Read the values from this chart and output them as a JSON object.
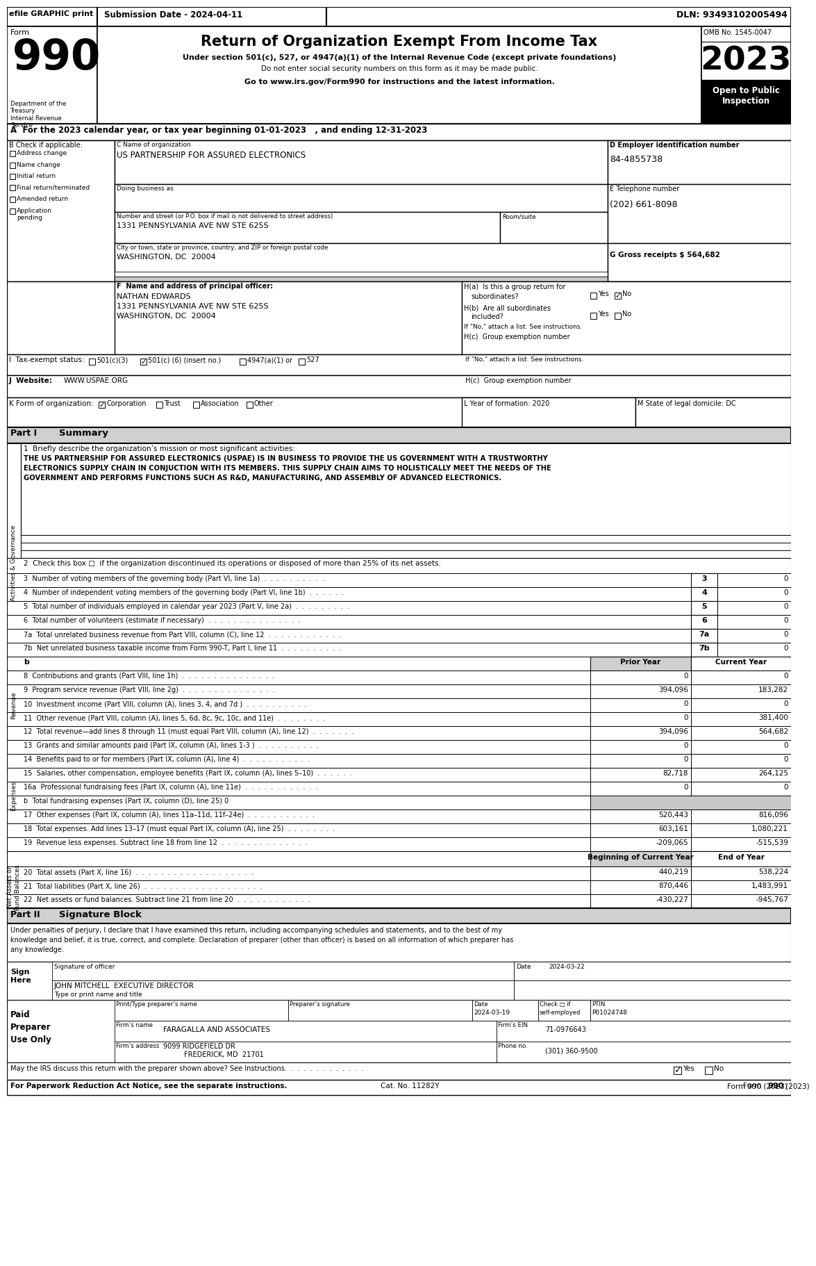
{
  "efile_header": "efile GRAPHIC print",
  "submission_date": "Submission Date - 2024-04-11",
  "dln": "DLN: 93493102005494",
  "form_number": "990",
  "title": "Return of Organization Exempt From Income Tax",
  "subtitle1": "Under section 501(c), 527, or 4947(a)(1) of the Internal Revenue Code (except private foundations)",
  "subtitle2": "Do not enter social security numbers on this form as it may be made public.",
  "subtitle3": "Go to www.irs.gov/Form990 for instructions and the latest information.",
  "omb": "OMB No. 1545-0047",
  "year": "2023",
  "open_to_public": "Open to Public\nInspection",
  "dept": "Department of the\nTreasury\nInternal Revenue\nService",
  "tax_year_line": "A  For the 2023 calendar year, or tax year beginning 01-01-2023   , and ending 12-31-2023",
  "b_label": "B Check if applicable:",
  "checkboxes_b": [
    "Address change",
    "Name change",
    "Initial return",
    "Final return/terminated",
    "Amended return",
    "Application\npending"
  ],
  "c_label": "C Name of organization",
  "org_name": "US PARTNERSHIP FOR ASSURED ELECTRONICS",
  "dba_label": "Doing business as",
  "address_label": "Number and street (or P.O. box if mail is not delivered to street address)",
  "room_label": "Room/suite",
  "address": "1331 PENNSYLVANIA AVE NW STE 625S",
  "city_label": "City or town, state or province, country, and ZIP or foreign postal code",
  "city": "WASHINGTON, DC  20004",
  "d_label": "D Employer identification number",
  "ein": "84-4855738",
  "e_label": "E Telephone number",
  "phone": "(202) 661-8098",
  "g_label": "G Gross receipts $ 564,682",
  "f_label": "F  Name and address of principal officer:",
  "principal_name": "NATHAN EDWARDS",
  "principal_addr1": "1331 PENNSYLVANIA AVE NW STE 625S",
  "principal_addr2": "WASHINGTON, DC  20004",
  "ha_label": "H(a)  Is this a group return for",
  "hb_label": "H(b)  Are all subordinates",
  "hb_label2": "included?",
  "hb_note": "If \"No,\" attach a list. See instructions.",
  "hc_label": "H(c)  Group exemption number",
  "website": "WWW.USPAE.ORG",
  "l_label": "L Year of formation: 2020",
  "m_label": "M State of legal domicile: DC",
  "part1_label": "Part I",
  "part1_title": "Summary",
  "line1_label": "1  Briefly describe the organization’s mission or most significant activities:",
  "mission_line1": "THE US PARTNERSHIP FOR ASSURED ELECTRONICS (USPAE) IS IN BUSINESS TO PROVIDE THE US GOVERNMENT WITH A TRUSTWORTHY",
  "mission_line2": "ELECTRONICS SUPPLY CHAIN IN CONJUCTION WITH ITS MEMBERS. THIS SUPPLY CHAIN AIMS TO HOLISTICALLY MEET THE NEEDS OF THE",
  "mission_line3": "GOVERNMENT AND PERFORMS FUNCTIONS SUCH AS R&D, MANUFACTURING, AND ASSEMBLY OF ADVANCED ELECTRONICS.",
  "line2": "2  Check this box □  if the organization discontinued its operations or disposed of more than 25% of its net assets.",
  "lines_3_6": [
    {
      "num": "3",
      "text": "Number of voting members of the governing body (Part VI, line 1a)  .  .  .  .  .  .  .  .  .  .",
      "val": "0"
    },
    {
      "num": "4",
      "text": "Number of independent voting members of the governing body (Part VI, line 1b)  .  .  .  .  .  .",
      "val": "0"
    },
    {
      "num": "5",
      "text": "Total number of individuals employed in calendar year 2023 (Part V, line 2a)  .  .  .  .  .  .  .  .  .",
      "val": "0"
    },
    {
      "num": "6",
      "text": "Total number of volunteers (estimate if necessary)  .  .  .  .  .  .  .  .  .  .  .  .  .  .  .",
      "val": "0"
    }
  ],
  "lines_7ab": [
    {
      "num": "7a",
      "text": "Total unrelated business revenue from Part VIII, column (C), line 12  .  .  .  .  .  .  .  .  .  .  .  .",
      "val": "0"
    },
    {
      "num": "7b",
      "text": "Net unrelated business taxable income from Form 990-T, Part I, line 11  .  .  .  .  .  .  .  .  .  .",
      "val": "0"
    }
  ],
  "prior_year_header": "Prior Year",
  "current_year_header": "Current Year",
  "b_row_label": "b",
  "revenue_lines": [
    {
      "num": "8",
      "text": "Contributions and grants (Part VIII, line 1h)  .  .  .  .  .  .  .  .  .  .  .  .  .  .  .",
      "prior": "0",
      "current": "0"
    },
    {
      "num": "9",
      "text": "Program service revenue (Part VIII, line 2g)  .  .  .  .  .  .  .  .  .  .  .  .  .  .  .",
      "prior": "394,096",
      "current": "183,282"
    },
    {
      "num": "10",
      "text": "Investment income (Part VIII, column (A), lines 3, 4, and 7d )  .  .  .  .  .  .  .  .  .  .",
      "prior": "0",
      "current": "0"
    },
    {
      "num": "11",
      "text": "Other revenue (Part VIII, column (A), lines 5, 6d, 8c, 9c, 10c, and 11e)  .  .  .  .  .  .  .  .",
      "prior": "0",
      "current": "381,400"
    },
    {
      "num": "12",
      "text": "Total revenue—add lines 8 through 11 (must equal Part VIII, column (A), line 12)  .  .  .  .  .  .  .",
      "prior": "394,096",
      "current": "564,682"
    }
  ],
  "expense_lines": [
    {
      "num": "13",
      "text": "Grants and similar amounts paid (Part IX, column (A), lines 1-3 )  .  .  .  .  .  .  .  .  .  .",
      "prior": "0",
      "current": "0",
      "gray": false
    },
    {
      "num": "14",
      "text": "Benefits paid to or for members (Part IX, column (A), line 4)  .  .  .  .  .  .  .  .  .  .  .",
      "prior": "0",
      "current": "0",
      "gray": false
    },
    {
      "num": "15",
      "text": "Salaries, other compensation, employee benefits (Part IX, column (A), lines 5–10)  .  .  .  .  .  .",
      "prior": "82,718",
      "current": "264,125",
      "gray": false
    },
    {
      "num": "16a",
      "text": "Professional fundraising fees (Part IX, column (A), line 11e)  .  .  .  .  .  .  .  .  .  .  .  .",
      "prior": "0",
      "current": "0",
      "gray": false
    },
    {
      "num": "b",
      "text": "Total fundraising expenses (Part IX, column (D), line 25) 0",
      "prior": "",
      "current": "",
      "gray": true
    },
    {
      "num": "17",
      "text": "Other expenses (Part IX, column (A), lines 11a–11d, 11f–24e)  .  .  .  .  .  .  .  .  .  .  .",
      "prior": "520,443",
      "current": "816,096",
      "gray": false
    },
    {
      "num": "18",
      "text": "Total expenses. Add lines 13–17 (must equal Part IX, column (A), line 25)  .  .  .  .  .  .  .  .",
      "prior": "603,161",
      "current": "1,080,221",
      "gray": false
    },
    {
      "num": "19",
      "text": "Revenue less expenses. Subtract line 18 from line 12  .  .  .  .  .  .  .  .  .  .  .  .  .  .",
      "prior": "-209,065",
      "current": "-515,539",
      "gray": false
    }
  ],
  "boc_header": "Beginning of Current Year",
  "eoy_header": "End of Year",
  "net_asset_lines": [
    {
      "num": "20",
      "text": "Total assets (Part X, line 16)  .  .  .  .  .  .  .  .  .  .  .  .  .  .  .  .  .  .  .",
      "boc": "440,219",
      "eoy": "538,224"
    },
    {
      "num": "21",
      "text": "Total liabilities (Part X, line 26)  .  .  .  .  .  .  .  .  .  .  .  .  .  .  .  .  .  .  .",
      "boc": "870,446",
      "eoy": "1,483,991"
    },
    {
      "num": "22",
      "text": "Net assets or fund balances. Subtract line 21 from line 20  .  .  .  .  .  .  .  .  .  .  .  .",
      "boc": "-430,227",
      "eoy": "-945,767"
    }
  ],
  "part2_label": "Part II",
  "part2_title": "Signature Block",
  "sig_text1": "Under penalties of perjury, I declare that I have examined this return, including accompanying schedules and statements, and to the best of my",
  "sig_text2": "knowledge and belief, it is true, correct, and complete. Declaration of preparer (other than officer) is based on all information of which preparer has",
  "sig_text3": "any knowledge.",
  "sig_officer_label": "Signature of officer",
  "sig_date_label": "Date",
  "sig_date": "2024-03-22",
  "sig_name": "JOHN MITCHELL  EXECUTIVE DIRECTOR",
  "sig_name_label": "Type or print name and title",
  "paid_label_line1": "Paid",
  "paid_label_line2": "Preparer",
  "paid_label_line3": "Use Only",
  "preparer_name_label": "Print/Type preparer’s name",
  "preparer_sig_label": "Preparer’s signature",
  "prep_date_label": "Date",
  "prep_date": "2024-03-19",
  "self_employed_label": "Check □ if\nself-employed",
  "ptin_label": "PTIN",
  "ptin": "P01024748",
  "firm_name_label": "Firm’s name",
  "firm_name": "FARAGALLA AND ASSOCIATES",
  "firm_ein_label": "Firm’s EIN",
  "firm_ein": "71-0976643",
  "firm_addr_label": "Firm’s address",
  "firm_addr": "9099 RIDGEFIELD DR",
  "firm_city": "FREDERICK, MD  21701",
  "phone_label": "Phone no.",
  "phone_no": "(301) 360-9500",
  "discuss_line": "May the IRS discuss this return with the preparer shown above? See Instructions.  .  .  .  .  .  .  .  .  .  .  .  .",
  "footer1": "For Paperwork Reduction Act Notice, see the separate instructions.",
  "footer2": "Cat. No. 11282Y",
  "footer3": "Form 990 (2023)",
  "sidebar_label1": "Activities & Governance",
  "sidebar_label2": "Revenue",
  "sidebar_label3": "Expenses",
  "sidebar_label4": "Net Assets or\nFund Balances",
  "bg_color": "#ffffff",
  "light_gray": "#c8c8c8",
  "med_gray": "#d0d0d0"
}
